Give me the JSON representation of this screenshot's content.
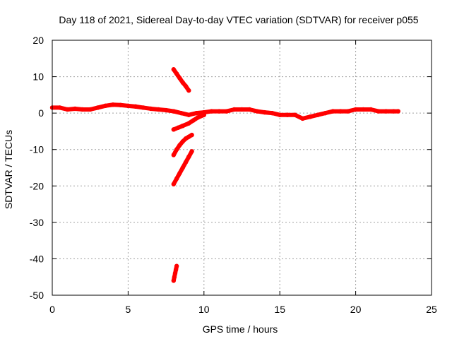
{
  "chart_data": {
    "type": "scatter",
    "title": "Day 118 of 2021, Sidereal Day-to-day VTEC variation (SDTVAR) for receiver p055",
    "xlabel": "GPS time / hours",
    "ylabel": "SDTVAR / TECUs",
    "xlim": [
      0,
      25
    ],
    "ylim": [
      -50,
      20
    ],
    "xticks": [
      "0",
      "5",
      "10",
      "15",
      "20",
      "25"
    ],
    "yticks": [
      "20",
      "10",
      "0",
      "-10",
      "-20",
      "-30",
      "-40",
      "-50"
    ],
    "grid": true,
    "marker_color": "#ff0000",
    "series": [
      {
        "name": "main trace",
        "x": [
          0,
          0.5,
          1,
          1.5,
          2,
          2.5,
          3,
          3.5,
          4,
          4.5,
          5,
          5.5,
          6,
          6.5,
          7,
          7.5,
          8,
          8.5,
          9,
          9.5,
          10,
          10.5,
          11,
          11.5,
          12,
          12.5,
          13,
          13.5,
          14,
          14.5,
          15,
          15.5,
          16,
          16.5,
          17,
          17.5,
          18,
          18.5,
          19,
          19.5,
          20,
          20.5,
          21,
          21.5,
          22,
          22.5,
          22.8
        ],
        "y": [
          1.5,
          1.5,
          1.0,
          1.2,
          1.0,
          1.0,
          1.5,
          2.0,
          2.3,
          2.2,
          2.0,
          1.8,
          1.5,
          1.2,
          1.0,
          0.8,
          0.5,
          0,
          -0.5,
          0,
          0.2,
          0.5,
          0.5,
          0.5,
          1.0,
          1.0,
          1.0,
          0.5,
          0.2,
          0,
          -0.5,
          -0.5,
          -0.5,
          -1.5,
          -1.0,
          -0.5,
          0,
          0.5,
          0.5,
          0.5,
          1.0,
          1.0,
          1.0,
          0.5,
          0.5,
          0.5,
          0.5
        ]
      },
      {
        "name": "steep arc upper",
        "x": [
          8.0,
          8.2,
          8.4,
          8.6,
          8.8,
          9.0
        ],
        "y": [
          12,
          10.8,
          9.6,
          8.4,
          7.4,
          6.2
        ]
      },
      {
        "name": "rising arc 1",
        "x": [
          8.0,
          8.3,
          8.6,
          9.0,
          9.3,
          9.6,
          10.0
        ],
        "y": [
          -4.5,
          -4.0,
          -3.5,
          -2.8,
          -2.0,
          -1.2,
          -0.5
        ]
      },
      {
        "name": "rising arc 2",
        "x": [
          8.0,
          8.2,
          8.4,
          8.6,
          8.8,
          9.0,
          9.2
        ],
        "y": [
          -11.5,
          -10.0,
          -8.8,
          -7.8,
          -7.0,
          -6.5,
          -6.0
        ]
      },
      {
        "name": "rising arc 3",
        "x": [
          8.0,
          8.2,
          8.4,
          8.6,
          8.8,
          9.0,
          9.2
        ],
        "y": [
          -19.5,
          -18.0,
          -16.5,
          -15.0,
          -13.5,
          -12.0,
          -10.5
        ]
      },
      {
        "name": "low cluster",
        "x": [
          8.0,
          8.05,
          8.1,
          8.15,
          8.2
        ],
        "y": [
          -46,
          -45,
          -44,
          -43,
          -42
        ]
      }
    ]
  }
}
